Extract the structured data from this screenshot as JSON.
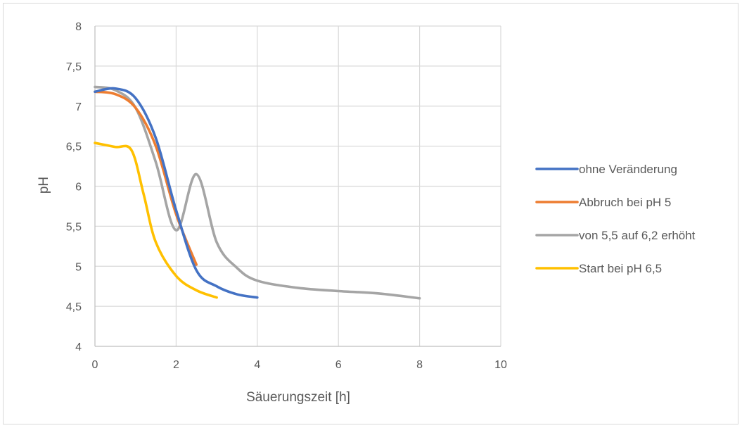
{
  "chart_data": {
    "type": "line",
    "title": "",
    "xlabel": "Säuerungszeit [h]",
    "ylabel": "pH",
    "xlim": [
      0,
      10
    ],
    "ylim": [
      4,
      8
    ],
    "x_ticks": [
      0,
      2,
      4,
      6,
      8,
      10
    ],
    "y_ticks": [
      4,
      4.5,
      5,
      5.5,
      6,
      6.5,
      7,
      7.5,
      8
    ],
    "x_tick_labels": [
      "0",
      "2",
      "4",
      "6",
      "8",
      "10"
    ],
    "y_tick_labels": [
      "4",
      "4,5",
      "5",
      "5,5",
      "6",
      "6,5",
      "7",
      "7,5",
      "8"
    ],
    "grid": "vertical and horizontal major gridlines",
    "legend_position": "right",
    "series": [
      {
        "name": "ohne Veränderung",
        "color": "#4472C4",
        "points": [
          [
            0,
            7.18
          ],
          [
            0.5,
            7.22
          ],
          [
            1,
            7.1
          ],
          [
            1.5,
            6.6
          ],
          [
            2,
            5.7
          ],
          [
            2.5,
            4.95
          ],
          [
            3,
            4.75
          ],
          [
            3.5,
            4.65
          ],
          [
            4,
            4.61
          ]
        ]
      },
      {
        "name": "Abbruch bei pH 5",
        "color": "#ED7D31",
        "points": [
          [
            0,
            7.18
          ],
          [
            0.5,
            7.15
          ],
          [
            1,
            6.98
          ],
          [
            1.5,
            6.5
          ],
          [
            2,
            5.65
          ],
          [
            2.5,
            5.02
          ]
        ]
      },
      {
        "name": "von 5,5 auf 6,2 erhöht",
        "color": "#A5A5A5",
        "points": [
          [
            0,
            7.24
          ],
          [
            0.5,
            7.2
          ],
          [
            1,
            6.98
          ],
          [
            1.5,
            6.3
          ],
          [
            2,
            5.45
          ],
          [
            2.5,
            6.15
          ],
          [
            3,
            5.3
          ],
          [
            3.5,
            4.98
          ],
          [
            4,
            4.82
          ],
          [
            5,
            4.73
          ],
          [
            6,
            4.69
          ],
          [
            7,
            4.66
          ],
          [
            8,
            4.6
          ]
        ]
      },
      {
        "name": "Start bei pH 6,5",
        "color": "#FFC000",
        "points": [
          [
            0,
            6.54
          ],
          [
            0.5,
            6.49
          ],
          [
            0.9,
            6.45
          ],
          [
            1.2,
            5.9
          ],
          [
            1.5,
            5.3
          ],
          [
            2,
            4.88
          ],
          [
            2.5,
            4.7
          ],
          [
            3,
            4.61
          ]
        ]
      }
    ]
  }
}
